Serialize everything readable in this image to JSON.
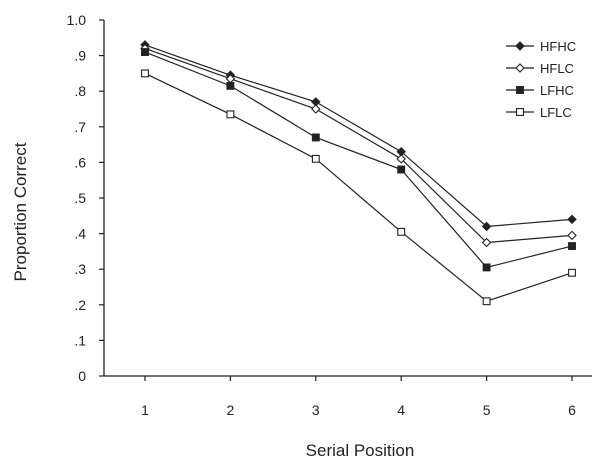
{
  "chart_data": {
    "type": "line",
    "xlabel": "Serial Position",
    "ylabel": "Proportion Correct",
    "categories": [
      "1",
      "2",
      "3",
      "4",
      "5",
      "6"
    ],
    "ylim": [
      0,
      1.0
    ],
    "yticks": [
      {
        "value": 0,
        "label": "0"
      },
      {
        "value": 0.1,
        "label": ".1"
      },
      {
        "value": 0.2,
        "label": ".2"
      },
      {
        "value": 0.3,
        "label": ".3"
      },
      {
        "value": 0.4,
        "label": ".4"
      },
      {
        "value": 0.5,
        "label": ".5"
      },
      {
        "value": 0.6,
        "label": ".6"
      },
      {
        "value": 0.7,
        "label": ".7"
      },
      {
        "value": 0.8,
        "label": ".8"
      },
      {
        "value": 0.9,
        "label": ".9"
      },
      {
        "value": 1.0,
        "label": "1.0"
      }
    ],
    "grid": false,
    "legend_position": "top-right",
    "series": [
      {
        "name": "HFHC",
        "marker": "filled-diamond",
        "values": [
          0.93,
          0.845,
          0.77,
          0.63,
          0.42,
          0.44
        ]
      },
      {
        "name": "HFLC",
        "marker": "open-diamond",
        "values": [
          0.92,
          0.835,
          0.75,
          0.61,
          0.375,
          0.395
        ]
      },
      {
        "name": "LFHC",
        "marker": "filled-square",
        "values": [
          0.91,
          0.815,
          0.67,
          0.58,
          0.305,
          0.365
        ]
      },
      {
        "name": "LFLC",
        "marker": "open-square",
        "values": [
          0.85,
          0.735,
          0.61,
          0.405,
          0.21,
          0.29
        ]
      }
    ],
    "colors": {
      "line": "#222222",
      "axis": "#222222",
      "background": "#ffffff"
    }
  }
}
